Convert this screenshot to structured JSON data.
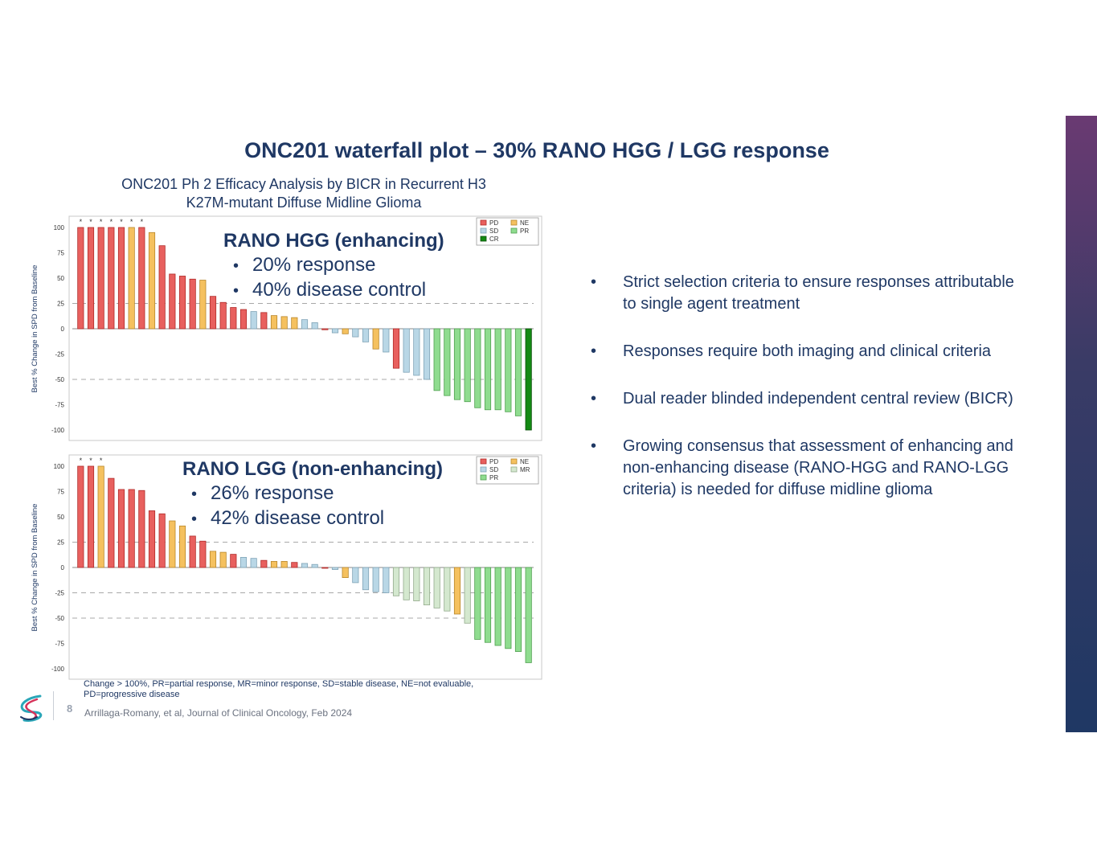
{
  "slide": {
    "title": "ONC201 waterfall plot – 30% RANO HGG / LGG response",
    "subtitle_line1": "ONC201 Ph 2 Efficacy Analysis by BICR in Recurrent H3",
    "subtitle_line2": "K27M-mutant Diffuse Midline Glioma",
    "bullets": [
      "Strict selection criteria to ensure responses attributable to single agent treatment",
      "Responses require both imaging and clinical criteria",
      "Dual reader blinded independent central review (BICR)",
      "Growing consensus that assessment of enhancing and non-enhancing disease (RANO-HGG and RANO-LGG criteria) is needed for diffuse midline glioma"
    ],
    "footnote": "Change > 100%, PR=partial response, MR=minor response, SD=stable disease, NE=not evaluable, PD=progressive disease",
    "citation": "Arrillaga-Romany, et al, Journal of Clinical Oncology, Feb 2024",
    "page_number": "8"
  },
  "colors": {
    "PD": "#e8605e",
    "NE": "#f5c15f",
    "SD": "#b9d7e6",
    "CR": "#138a13",
    "PR": "#8fdc8f",
    "MR": "#d4e8cf",
    "title": "#1f3864"
  },
  "chart_data": [
    {
      "type": "bar",
      "panel": "hgg",
      "overlay_title": "RANO HGG (enhancing)",
      "overlay_bullets": [
        "20% response",
        "40% disease control"
      ],
      "ylabel": "Best % Change in SPD from Baseline",
      "ylim": [
        -100,
        100
      ],
      "yticks": [
        100,
        75,
        50,
        25,
        0,
        -25,
        -50,
        -75,
        -100
      ],
      "reference_lines": [
        25,
        -50
      ],
      "legend": [
        "PD",
        "NE",
        "SD",
        "PR",
        "CR"
      ],
      "legend_position": "top-right",
      "marker": "*",
      "values": [
        100,
        100,
        100,
        100,
        100,
        100,
        100,
        95,
        82,
        54,
        52,
        49,
        48,
        32,
        26,
        21,
        19,
        17,
        16,
        13,
        12,
        11,
        9,
        6,
        -1,
        -4,
        -5,
        -8,
        -13,
        -20,
        -23,
        -39,
        -43,
        -46,
        -50,
        -61,
        -66,
        -70,
        -72,
        -78,
        -80,
        -80,
        -82,
        -86,
        -100
      ],
      "categories": [
        "PD",
        "PD",
        "PD",
        "PD",
        "PD",
        "NE",
        "PD",
        "NE",
        "PD",
        "PD",
        "PD",
        "PD",
        "NE",
        "PD",
        "PD",
        "PD",
        "PD",
        "SD",
        "PD",
        "NE",
        "NE",
        "NE",
        "SD",
        "SD",
        "PD",
        "SD",
        "NE",
        "SD",
        "SD",
        "NE",
        "SD",
        "PD",
        "SD",
        "SD",
        "SD",
        "PR",
        "PR",
        "PR",
        "PR",
        "PR",
        "PR",
        "PR",
        "PR",
        "PR",
        "CR"
      ],
      "starred": [
        true,
        true,
        true,
        true,
        true,
        true,
        true,
        false,
        false,
        false,
        false,
        false,
        false,
        false,
        false,
        false,
        false,
        false,
        false,
        false,
        false,
        false,
        false,
        false,
        false,
        false,
        false,
        false,
        false,
        false,
        false,
        false,
        false,
        false,
        false,
        false,
        false,
        false,
        false,
        false,
        false,
        false,
        false,
        false,
        false
      ]
    },
    {
      "type": "bar",
      "panel": "lgg",
      "overlay_title": "RANO LGG (non-enhancing)",
      "overlay_bullets": [
        "26% response",
        "42% disease control"
      ],
      "ylabel": "Best % Change in SPD from Baseline",
      "ylim": [
        -100,
        100
      ],
      "yticks": [
        100,
        75,
        50,
        25,
        0,
        -25,
        -50,
        -75,
        -100
      ],
      "reference_lines": [
        25,
        -25,
        -50
      ],
      "legend": [
        "PD",
        "NE",
        "SD",
        "MR",
        "PR"
      ],
      "legend_position": "top-right",
      "marker": "*",
      "values": [
        100,
        100,
        100,
        88,
        77,
        77,
        76,
        56,
        53,
        46,
        41,
        31,
        26,
        16,
        15,
        13,
        10,
        9,
        7,
        6,
        6,
        5,
        4,
        3,
        0,
        -2,
        -10,
        -15,
        -22,
        -24,
        -25,
        -28,
        -32,
        -33,
        -37,
        -40,
        -43,
        -46,
        -55,
        -71,
        -74,
        -77,
        -80,
        -83,
        -94
      ],
      "categories": [
        "PD",
        "PD",
        "NE",
        "PD",
        "PD",
        "PD",
        "PD",
        "PD",
        "PD",
        "NE",
        "NE",
        "PD",
        "PD",
        "NE",
        "NE",
        "PD",
        "SD",
        "SD",
        "PD",
        "NE",
        "NE",
        "PD",
        "SD",
        "SD",
        "PD",
        "SD",
        "NE",
        "SD",
        "SD",
        "SD",
        "SD",
        "MR",
        "MR",
        "MR",
        "MR",
        "MR",
        "MR",
        "NE",
        "MR",
        "PR",
        "PR",
        "PR",
        "PR",
        "PR",
        "PR"
      ],
      "starred": [
        true,
        true,
        true,
        false,
        false,
        false,
        false,
        false,
        false,
        false,
        false,
        false,
        false,
        false,
        false,
        false,
        false,
        false,
        false,
        false,
        false,
        false,
        false,
        false,
        false,
        false,
        false,
        false,
        false,
        false,
        false,
        false,
        false,
        false,
        false,
        false,
        false,
        false,
        false,
        false,
        false,
        false,
        false,
        false,
        false
      ]
    }
  ]
}
